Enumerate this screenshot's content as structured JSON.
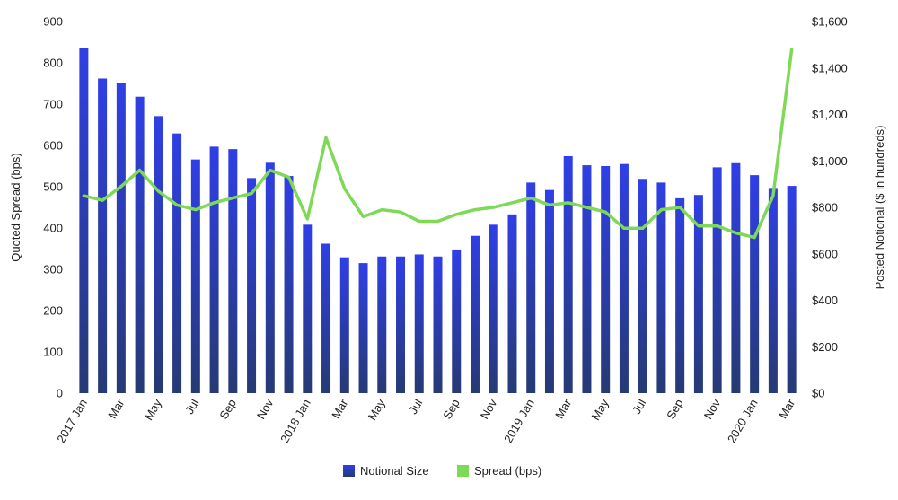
{
  "chart_data": {
    "type": "bar",
    "x_categories": [
      "2017 Jan",
      "Feb",
      "Mar",
      "Apr",
      "May",
      "Jun",
      "Jul",
      "Aug",
      "Sep",
      "Oct",
      "Nov",
      "Dec",
      "2018 Jan",
      "Feb",
      "Mar",
      "Apr",
      "May",
      "Jun",
      "Jul",
      "Aug",
      "Sep",
      "Oct",
      "Nov",
      "Dec",
      "2019 Jan",
      "Feb",
      "Mar",
      "Apr",
      "May",
      "Jun",
      "Jul",
      "Aug",
      "Sep",
      "Oct",
      "Nov",
      "Dec",
      "2020 Jan",
      "Feb",
      "Mar"
    ],
    "x_tick_labels": [
      "2017 Jan",
      "",
      "Mar",
      "",
      "May",
      "",
      "Jul",
      "",
      "Sep",
      "",
      "Nov",
      "",
      "2018 Jan",
      "",
      "Mar",
      "",
      "May",
      "",
      "Jul",
      "",
      "Sep",
      "",
      "Nov",
      "",
      "2019 Jan",
      "",
      "Mar",
      "",
      "May",
      "",
      "Jul",
      "",
      "Sep",
      "",
      "Nov",
      "",
      "2020 Jan",
      "",
      "Mar"
    ],
    "series": [
      {
        "name": "Notional Size",
        "type": "bar",
        "axis": "left",
        "color": "#2f3fe6",
        "color_bottom": "#263a74",
        "values": [
          836,
          762,
          751,
          718,
          671,
          629,
          566,
          597,
          591,
          521,
          558,
          526,
          408,
          362,
          329,
          315,
          331,
          331,
          336,
          331,
          348,
          381,
          408,
          433,
          510,
          492,
          574,
          552,
          550,
          555,
          519,
          510,
          472,
          480,
          547,
          557,
          528,
          497,
          502
        ]
      },
      {
        "name": "Spread (bps)",
        "type": "line",
        "axis": "right",
        "color": "#7ed957",
        "values": [
          850,
          830,
          890,
          960,
          870,
          810,
          790,
          820,
          840,
          860,
          960,
          930,
          750,
          1100,
          880,
          760,
          790,
          780,
          740,
          740,
          770,
          790,
          800,
          820,
          840,
          810,
          820,
          800,
          780,
          710,
          710,
          790,
          800,
          720,
          720,
          690,
          670,
          850,
          1480
        ]
      }
    ],
    "left_axis": {
      "title": "Quoted Spread (bps)",
      "min": 0,
      "max": 900,
      "ticks": [
        "0",
        "100",
        "200",
        "300",
        "400",
        "500",
        "600",
        "700",
        "800",
        "900"
      ]
    },
    "right_axis": {
      "title": "Posted Notional ($ in hundreds)",
      "min": 0,
      "max": 1600,
      "ticks": [
        "$0",
        "$200",
        "$400",
        "$600",
        "$800",
        "$1,000",
        "$1,200",
        "$1,400",
        "$1,600"
      ]
    },
    "grid": false,
    "legend_position": "bottom-center"
  }
}
